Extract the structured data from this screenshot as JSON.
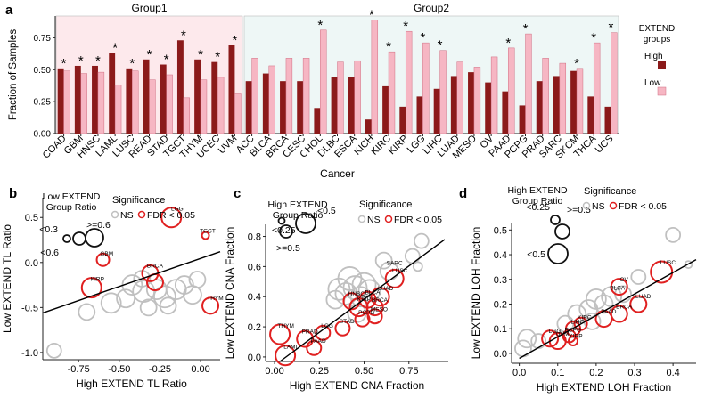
{
  "panel_labels": {
    "a": "a",
    "b": "b",
    "c": "c",
    "d": "d"
  },
  "colors": {
    "high": "#8b1a1a",
    "low": "#f6b6c3",
    "low_stroke": "#d06e82",
    "group1_bg": "#fde9ec",
    "group2_bg": "#eef7f6",
    "sig": "#e02020",
    "ns": "#c0c0c0",
    "axis": "#222222"
  },
  "chart_data": [
    {
      "id": "a",
      "type": "bar",
      "title": "",
      "xlabel": "Cancer",
      "ylabel": "Fraction of Samples",
      "ylim": [
        0,
        0.92
      ],
      "yticks": [
        "0.00",
        "0.25",
        "0.50",
        "0.75"
      ],
      "ytick_values": [
        0,
        0.25,
        0.5,
        0.75
      ],
      "groups": [
        {
          "label": "Group1",
          "range": [
            0,
            10
          ]
        },
        {
          "label": "Group2",
          "range": [
            11,
            32
          ]
        }
      ],
      "legend": {
        "title_line1": "EXTEND",
        "title_line2": "groups",
        "high": "High",
        "low": "Low"
      },
      "categories": [
        "COAD",
        "GBM",
        "HNSC",
        "LAML",
        "LUSC",
        "READ",
        "STAD",
        "TGCT",
        "THYM",
        "UCEC",
        "UVM",
        "ACC",
        "BLCA",
        "BRCA",
        "CESC",
        "CHOL",
        "DLBC",
        "ESCA",
        "KICH",
        "KIRC",
        "KIRP",
        "LGG",
        "LIHC",
        "LUAD",
        "MESO",
        "OV",
        "PAAD",
        "PCPG",
        "PRAD",
        "SARC",
        "SKCM",
        "THCA",
        "UCS"
      ],
      "series": [
        {
          "name": "High",
          "values": [
            0.51,
            0.53,
            0.53,
            0.63,
            0.51,
            0.58,
            0.54,
            0.73,
            0.58,
            0.56,
            0.69,
            0.41,
            0.47,
            0.41,
            0.41,
            0.2,
            0.44,
            0.44,
            0.11,
            0.37,
            0.21,
            0.29,
            0.35,
            0.45,
            0.48,
            0.4,
            0.33,
            0.22,
            0.41,
            0.45,
            0.49,
            0.29,
            0.21
          ]
        },
        {
          "name": "Low",
          "values": [
            0.49,
            0.47,
            0.48,
            0.38,
            0.49,
            0.42,
            0.46,
            0.28,
            0.42,
            0.44,
            0.31,
            0.59,
            0.53,
            0.59,
            0.59,
            0.81,
            0.56,
            0.57,
            0.89,
            0.64,
            0.8,
            0.71,
            0.65,
            0.56,
            0.52,
            0.6,
            0.67,
            0.78,
            0.59,
            0.55,
            0.51,
            0.71,
            0.79
          ]
        }
      ],
      "significant": [
        true,
        true,
        true,
        true,
        true,
        true,
        true,
        true,
        true,
        true,
        true,
        false,
        false,
        false,
        false,
        true,
        false,
        false,
        true,
        true,
        true,
        true,
        true,
        false,
        false,
        false,
        true,
        true,
        false,
        false,
        true,
        true,
        true
      ],
      "star": "*"
    },
    {
      "id": "b",
      "type": "scatter",
      "xlabel": "High EXTEND TL Ratio",
      "ylabel": "Low EXTEND TL Ratio",
      "xlim": [
        -0.97,
        0.12
      ],
      "ylim": [
        -1.08,
        0.72
      ],
      "xticks": [
        "-0.75",
        "-0.50",
        "-0.25",
        "0.00"
      ],
      "xtick_values": [
        -0.75,
        -0.5,
        -0.25,
        0
      ],
      "yticks": [
        "-1.0",
        "-0.5",
        "0.0",
        "0.5"
      ],
      "ytick_values": [
        -1.0,
        -0.5,
        0,
        0.5
      ],
      "fit_line": {
        "x": [
          -0.97,
          0.12
        ],
        "y": [
          -0.56,
          0.12
        ]
      },
      "size_legend": {
        "title_line1": "Low EXTEND",
        "title_line2": "Group Ratio",
        "labels": [
          "<0.3",
          ">=0.6",
          "<0.6"
        ]
      },
      "sig_legend": {
        "title": "Significance",
        "ns": "NS",
        "sig": "FDR < 0.05"
      },
      "points": [
        {
          "x": -0.18,
          "y": 0.5,
          "r": 11,
          "sig": true,
          "label": "LGG"
        },
        {
          "x": 0.03,
          "y": 0.3,
          "r": 4,
          "sig": true,
          "label": "TGCT"
        },
        {
          "x": -0.6,
          "y": 0.03,
          "r": 7,
          "sig": true,
          "label": "GBM"
        },
        {
          "x": -0.31,
          "y": -0.12,
          "r": 9,
          "sig": true,
          "label": "BRCA"
        },
        {
          "x": -0.67,
          "y": -0.28,
          "r": 11,
          "sig": true,
          "label": "KIRP"
        },
        {
          "x": 0.06,
          "y": -0.48,
          "r": 9,
          "sig": true,
          "label": "THYM"
        },
        {
          "x": -0.28,
          "y": -0.22,
          "r": 9,
          "sig": true,
          "label": ""
        },
        {
          "x": -0.42,
          "y": -0.25,
          "r": 11,
          "sig": false,
          "label": ""
        },
        {
          "x": -0.35,
          "y": -0.32,
          "r": 12,
          "sig": false,
          "label": ""
        },
        {
          "x": -0.27,
          "y": -0.3,
          "r": 11,
          "sig": false,
          "label": ""
        },
        {
          "x": -0.22,
          "y": -0.38,
          "r": 12,
          "sig": false,
          "label": ""
        },
        {
          "x": -0.15,
          "y": -0.3,
          "r": 11,
          "sig": false,
          "label": ""
        },
        {
          "x": -0.1,
          "y": -0.25,
          "r": 10,
          "sig": false,
          "label": ""
        },
        {
          "x": -0.05,
          "y": -0.36,
          "r": 10,
          "sig": false,
          "label": ""
        },
        {
          "x": -0.36,
          "y": -0.18,
          "r": 9,
          "sig": false,
          "label": ""
        },
        {
          "x": -0.46,
          "y": -0.4,
          "r": 10,
          "sig": false,
          "label": ""
        },
        {
          "x": -0.55,
          "y": -0.45,
          "r": 11,
          "sig": false,
          "label": ""
        },
        {
          "x": -0.7,
          "y": -0.55,
          "r": 9,
          "sig": false,
          "label": ""
        },
        {
          "x": -0.02,
          "y": -0.19,
          "r": 9,
          "sig": false,
          "label": ""
        },
        {
          "x": -0.2,
          "y": -0.48,
          "r": 9,
          "sig": false,
          "label": ""
        },
        {
          "x": -0.32,
          "y": -0.5,
          "r": 9,
          "sig": false,
          "label": ""
        },
        {
          "x": -0.9,
          "y": -0.98,
          "r": 8,
          "sig": false,
          "label": ""
        }
      ]
    },
    {
      "id": "c",
      "type": "scatter",
      "xlabel": "High EXTEND CNA Fraction",
      "ylabel": "Low EXTEND CNA Fraction",
      "xlim": [
        -0.05,
        0.97
      ],
      "ylim": [
        -0.03,
        0.88
      ],
      "xticks": [
        "0.00",
        "0.25",
        "0.50",
        "0.75"
      ],
      "xtick_values": [
        0,
        0.25,
        0.5,
        0.75
      ],
      "yticks": [
        "0.0",
        "0.2",
        "0.4",
        "0.6",
        "0.8"
      ],
      "ytick_values": [
        0,
        0.2,
        0.4,
        0.6,
        0.8
      ],
      "fit_line": {
        "x": [
          0.03,
          0.95
        ],
        "y": [
          -0.03,
          0.78
        ]
      },
      "size_legend": {
        "title_line1": "High EXTEND",
        "title_line2": "Group Ratio",
        "labels": [
          "<0.25",
          ">=0.5",
          "<0.5"
        ]
      },
      "sig_legend": {
        "title": "Significance",
        "ns": "NS",
        "sig": "FDR < 0.05"
      },
      "points": [
        {
          "x": 0.67,
          "y": 0.52,
          "r": 10,
          "sig": true,
          "label": "LUSC"
        },
        {
          "x": 0.59,
          "y": 0.4,
          "r": 10,
          "sig": true,
          "label": "LUAD"
        },
        {
          "x": 0.52,
          "y": 0.38,
          "r": 9,
          "sig": true,
          "label": "BLCA"
        },
        {
          "x": 0.43,
          "y": 0.37,
          "r": 9,
          "sig": true,
          "label": "HNSC"
        },
        {
          "x": 0.47,
          "y": 0.33,
          "r": 10,
          "sig": true,
          "label": "KIRP"
        },
        {
          "x": 0.56,
          "y": 0.33,
          "r": 9,
          "sig": true,
          "label": "BRCA"
        },
        {
          "x": 0.49,
          "y": 0.25,
          "r": 8,
          "sig": true,
          "label": "PCPG"
        },
        {
          "x": 0.38,
          "y": 0.19,
          "r": 8,
          "sig": true,
          "label": "STAD"
        },
        {
          "x": 0.56,
          "y": 0.27,
          "r": 8,
          "sig": true,
          "label": "MESO"
        },
        {
          "x": 0.27,
          "y": 0.16,
          "r": 8,
          "sig": true,
          "label": "LGG"
        },
        {
          "x": 0.03,
          "y": 0.15,
          "r": 11,
          "sig": true,
          "label": "THYM"
        },
        {
          "x": 0.17,
          "y": 0.12,
          "r": 9,
          "sig": true,
          "label": "PRAD"
        },
        {
          "x": 0.22,
          "y": 0.06,
          "r": 8,
          "sig": true,
          "label": "PAAD"
        },
        {
          "x": 0.06,
          "y": 0.01,
          "r": 11,
          "sig": true,
          "label": "LAML"
        },
        {
          "x": 0.64,
          "y": 0.57,
          "r": 10,
          "sig": false,
          "label": "SARC"
        },
        {
          "x": 0.61,
          "y": 0.64,
          "r": 9,
          "sig": false,
          "label": ""
        },
        {
          "x": 0.77,
          "y": 0.67,
          "r": 8,
          "sig": false,
          "label": ""
        },
        {
          "x": 0.8,
          "y": 0.6,
          "r": 5,
          "sig": false,
          "label": ""
        },
        {
          "x": 0.82,
          "y": 0.77,
          "r": 8,
          "sig": false,
          "label": ""
        },
        {
          "x": 0.42,
          "y": 0.52,
          "r": 13,
          "sig": false,
          "label": ""
        },
        {
          "x": 0.5,
          "y": 0.48,
          "r": 13,
          "sig": false,
          "label": ""
        },
        {
          "x": 0.36,
          "y": 0.45,
          "r": 12,
          "sig": false,
          "label": ""
        },
        {
          "x": 0.4,
          "y": 0.42,
          "r": 12,
          "sig": false,
          "label": ""
        },
        {
          "x": 0.45,
          "y": 0.46,
          "r": 13,
          "sig": false,
          "label": ""
        },
        {
          "x": 0.53,
          "y": 0.44,
          "r": 12,
          "sig": false,
          "label": ""
        },
        {
          "x": 0.48,
          "y": 0.4,
          "r": 11,
          "sig": false,
          "label": ""
        },
        {
          "x": 0.34,
          "y": 0.38,
          "r": 10,
          "sig": false,
          "label": ""
        },
        {
          "x": 0.46,
          "y": 0.29,
          "r": 10,
          "sig": false,
          "label": ""
        }
      ]
    },
    {
      "id": "d",
      "type": "scatter",
      "xlabel": "High EXTEND LOH Fraction",
      "ylabel": "Low EXTEND LOH Fraction",
      "xlim": [
        -0.02,
        0.46
      ],
      "ylim": [
        -0.04,
        0.53
      ],
      "xticks": [
        "0.0",
        "0.1",
        "0.2",
        "0.3",
        "0.4"
      ],
      "xtick_values": [
        0,
        0.1,
        0.2,
        0.3,
        0.4
      ],
      "yticks": [
        "0.0",
        "0.1",
        "0.2",
        "0.3",
        "0.4",
        "0.5"
      ],
      "ytick_values": [
        0,
        0.1,
        0.2,
        0.3,
        0.4,
        0.5
      ],
      "fit_line": {
        "x": [
          0.0,
          0.46
        ],
        "y": [
          -0.02,
          0.38
        ]
      },
      "size_legend": {
        "title_line1": "High EXTEND",
        "title_line2": "Group Ratio",
        "labels": [
          "<0.25",
          ">=0.5",
          "<0.5"
        ]
      },
      "sig_legend": {
        "title": "Significance",
        "ns": "NS",
        "sig": "FDR < 0.05"
      },
      "points": [
        {
          "x": 0.37,
          "y": 0.33,
          "r": 12,
          "sig": true,
          "label": "LUSC"
        },
        {
          "x": 0.31,
          "y": 0.2,
          "r": 9,
          "sig": true,
          "label": "LUAD"
        },
        {
          "x": 0.26,
          "y": 0.27,
          "r": 9,
          "sig": true,
          "label": "OV"
        },
        {
          "x": 0.26,
          "y": 0.16,
          "r": 9,
          "sig": true,
          "label": "BRCA"
        },
        {
          "x": 0.22,
          "y": 0.14,
          "r": 9,
          "sig": true,
          "label": "PAAD"
        },
        {
          "x": 0.16,
          "y": 0.12,
          "r": 7,
          "sig": true,
          "label": "KIRC"
        },
        {
          "x": 0.14,
          "y": 0.1,
          "r": 8,
          "sig": true,
          "label": "LIHC"
        },
        {
          "x": 0.13,
          "y": 0.07,
          "r": 7,
          "sig": true,
          "label": "PCPG"
        },
        {
          "x": 0.08,
          "y": 0.06,
          "r": 9,
          "sig": true,
          "label": "LGG"
        },
        {
          "x": 0.1,
          "y": 0.05,
          "r": 9,
          "sig": true,
          "label": "UVM"
        },
        {
          "x": 0.14,
          "y": 0.05,
          "r": 5,
          "sig": true,
          "label": "KIRP"
        },
        {
          "x": 0.4,
          "y": 0.48,
          "r": 8,
          "sig": false,
          "label": ""
        },
        {
          "x": 0.44,
          "y": 0.36,
          "r": 4,
          "sig": false,
          "label": ""
        },
        {
          "x": 0.31,
          "y": 0.31,
          "r": 8,
          "sig": false,
          "label": ""
        },
        {
          "x": 0.24,
          "y": 0.23,
          "r": 11,
          "sig": false,
          "label": "BLCA"
        },
        {
          "x": 0.2,
          "y": 0.22,
          "r": 11,
          "sig": false,
          "label": ""
        },
        {
          "x": 0.27,
          "y": 0.24,
          "r": 9,
          "sig": false,
          "label": ""
        },
        {
          "x": 0.18,
          "y": 0.18,
          "r": 10,
          "sig": false,
          "label": ""
        },
        {
          "x": 0.22,
          "y": 0.2,
          "r": 10,
          "sig": false,
          "label": ""
        },
        {
          "x": 0.15,
          "y": 0.16,
          "r": 10,
          "sig": false,
          "label": ""
        },
        {
          "x": 0.19,
          "y": 0.13,
          "r": 9,
          "sig": false,
          "label": ""
        },
        {
          "x": 0.12,
          "y": 0.12,
          "r": 9,
          "sig": false,
          "label": ""
        },
        {
          "x": 0.02,
          "y": 0.06,
          "r": 10,
          "sig": false,
          "label": ""
        },
        {
          "x": 0.01,
          "y": 0.02,
          "r": 9,
          "sig": false,
          "label": ""
        },
        {
          "x": 0.05,
          "y": 0.05,
          "r": 8,
          "sig": false,
          "label": ""
        }
      ]
    }
  ]
}
